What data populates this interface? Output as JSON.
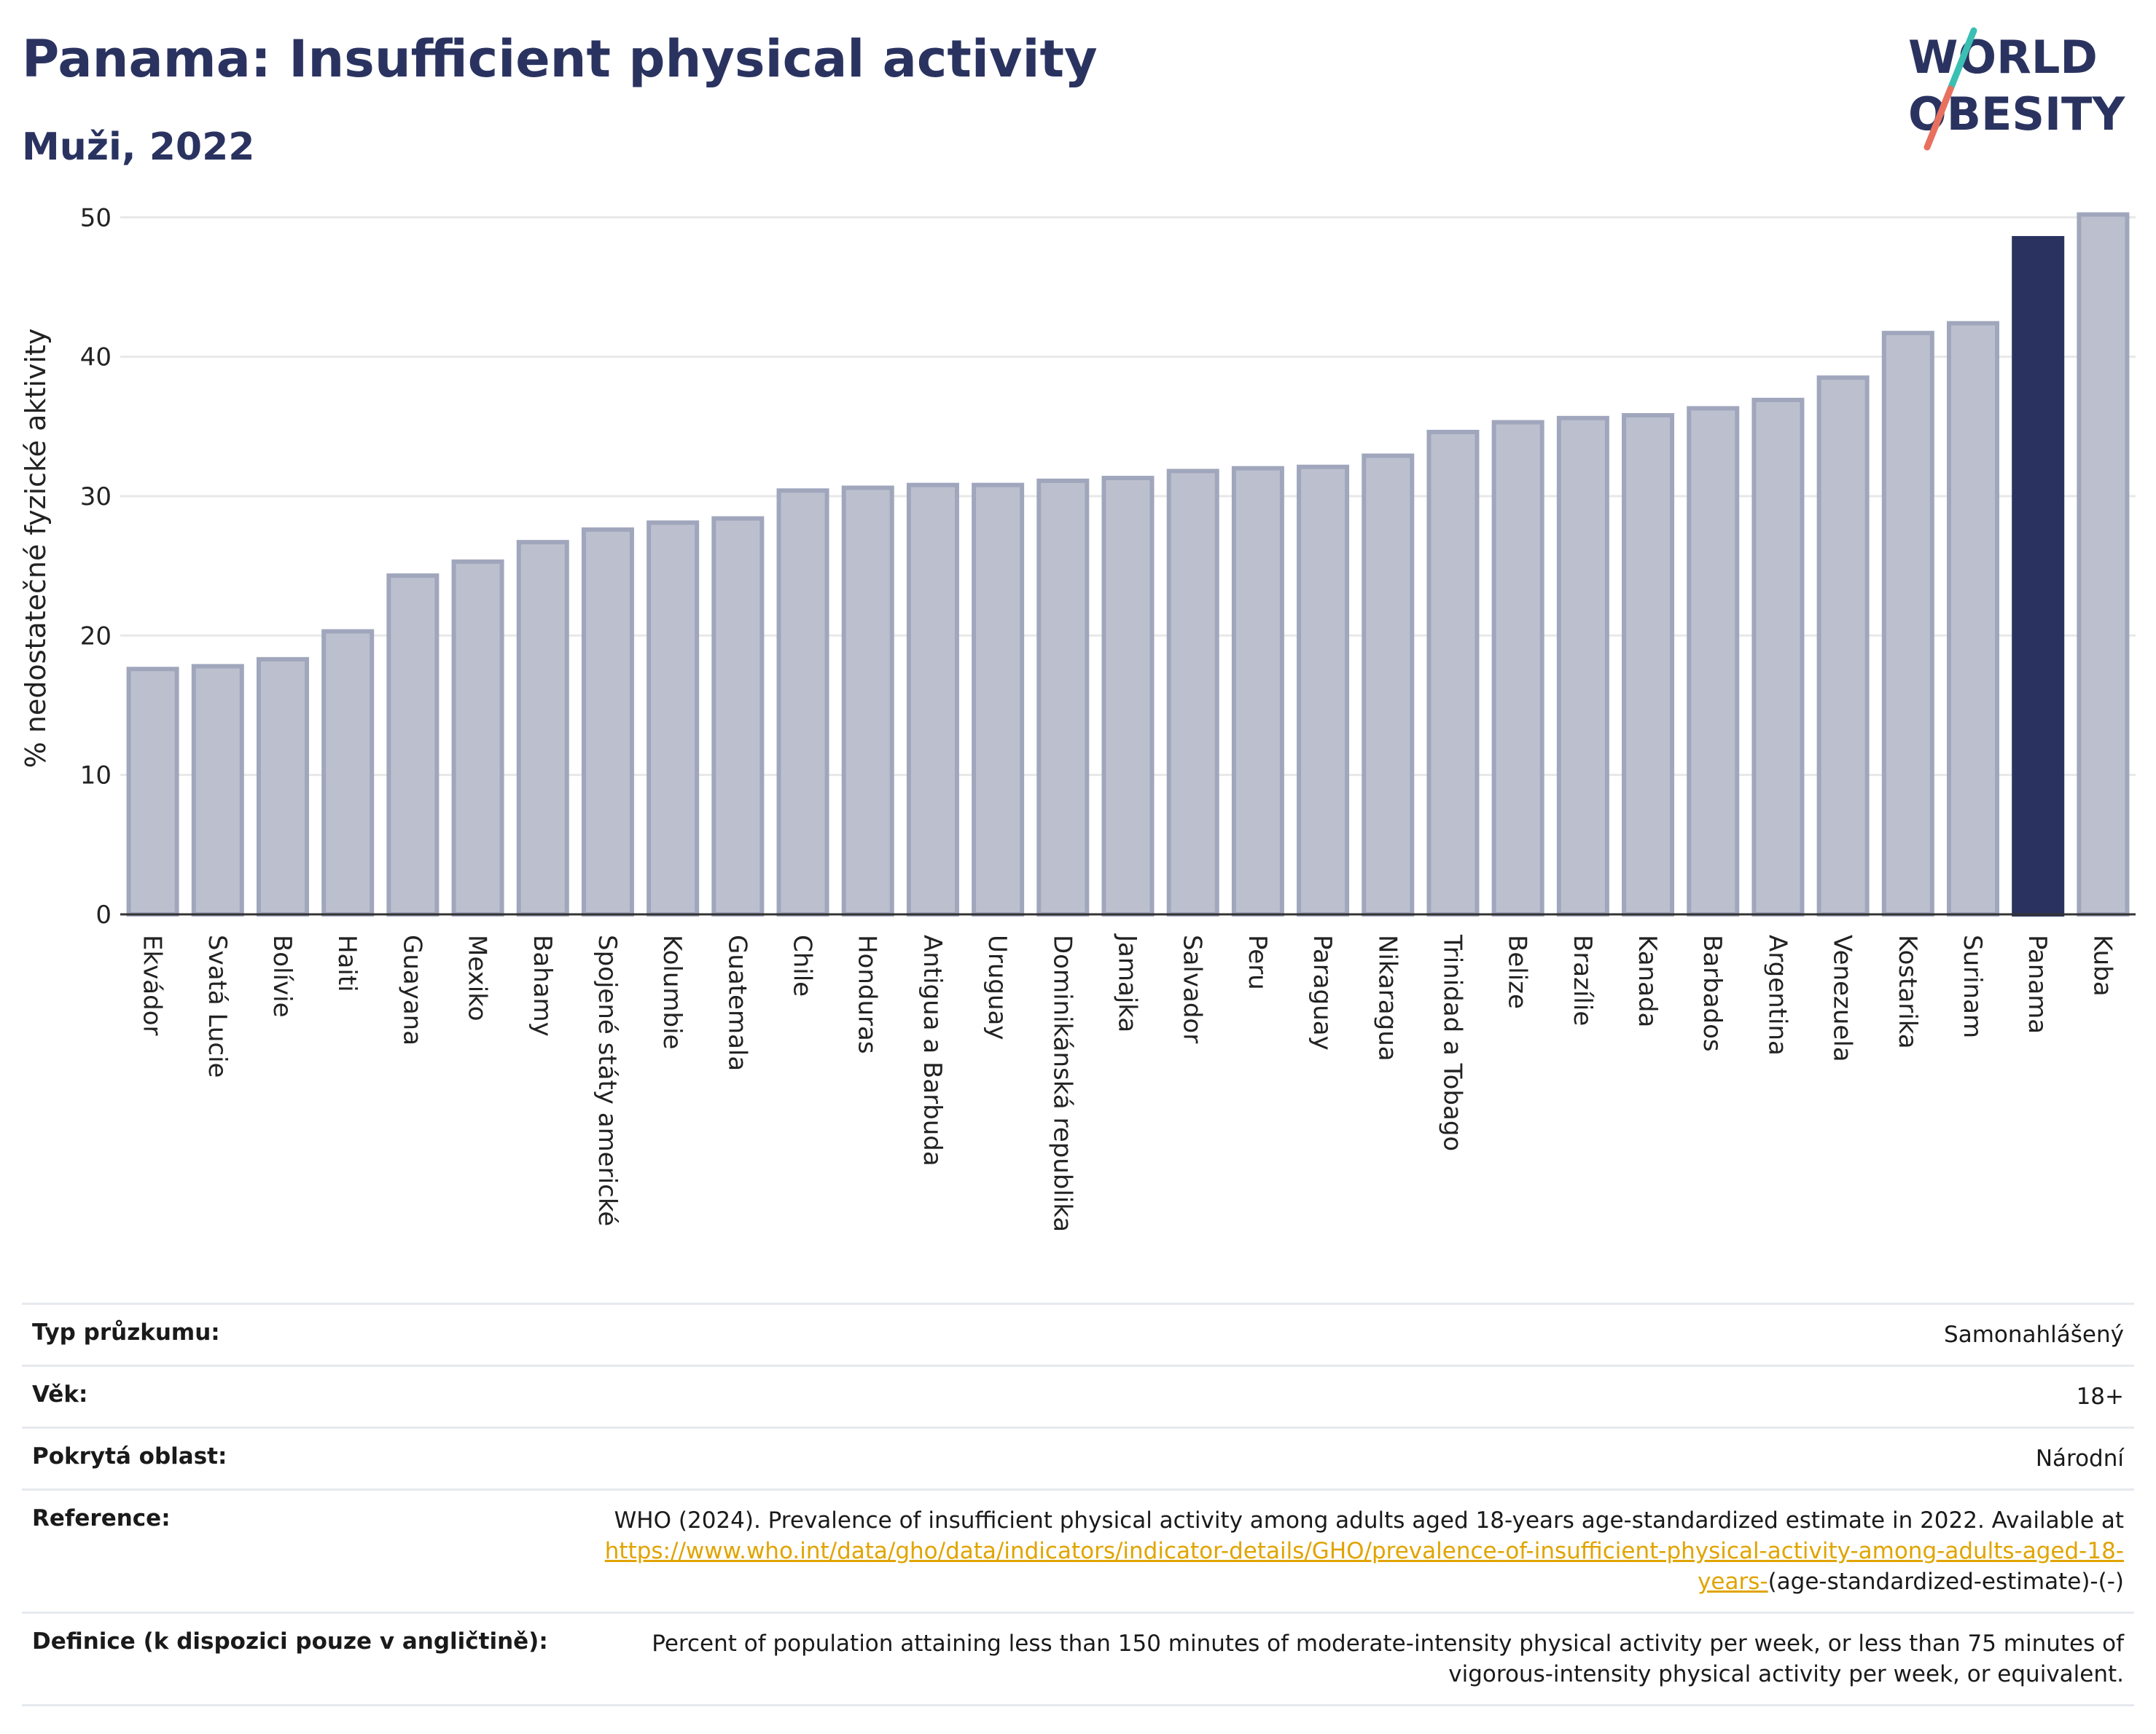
{
  "header": {
    "title": "Panama: Insufficient physical activity",
    "subtitle": "Muži, 2022",
    "logo_line1": "WORLD",
    "logo_line2": "OBESITY"
  },
  "colors": {
    "bar": "#bcc0ce",
    "bar_border": "#a0a6bc",
    "highlight": "#2a3360",
    "grid": "#e8e8e8",
    "link": "#e0a400",
    "logo_slash_teal": "#3bbfb3",
    "logo_slash_red": "#e8705e"
  },
  "chart_data": {
    "type": "bar",
    "ylabel": "% nedostatečné fyzické aktivity",
    "ylim": [
      0,
      52
    ],
    "yticks": [
      0,
      10,
      20,
      30,
      40,
      50
    ],
    "grid": true,
    "highlight": "Panama",
    "categories": [
      "Ekvádor",
      "Svatá Lucie",
      "Bolívie",
      "Haiti",
      "Guayana",
      "Mexiko",
      "Bahamy",
      "Spojené státy americké",
      "Kolumbie",
      "Guatemala",
      "Chile",
      "Honduras",
      "Antigua a Barbuda",
      "Uruguay",
      "Dominikánská republika",
      "Jamajka",
      "Salvador",
      "Peru",
      "Paraguay",
      "Nikaragua",
      "Trinidad a Tobago",
      "Belize",
      "Brazílie",
      "Kanada",
      "Barbados",
      "Argentina",
      "Venezuela",
      "Kostarika",
      "Surinam",
      "Panama",
      "Kuba"
    ],
    "values": [
      17.6,
      17.8,
      18.3,
      20.3,
      24.3,
      25.3,
      26.7,
      27.6,
      28.1,
      28.4,
      30.4,
      30.6,
      30.8,
      30.8,
      31.1,
      31.3,
      31.8,
      32.0,
      32.1,
      32.9,
      34.6,
      35.3,
      35.6,
      35.8,
      36.3,
      36.9,
      38.5,
      41.7,
      42.4,
      48.5,
      50.2
    ]
  },
  "info": {
    "rows": [
      {
        "label": "Typ průzkumu:",
        "value": "Samonahlášený"
      },
      {
        "label": "Věk:",
        "value": "18+"
      },
      {
        "label": "Pokrytá oblast:",
        "value": "Národní"
      }
    ],
    "reference": {
      "label": "Reference:",
      "text_before": "WHO (2024). Prevalence of insufficient physical activity among adults aged 18-years age-standardized estimate in 2022. Available at",
      "link": "https://www.who.int/data/gho/data/indicators/indicator-details/GHO/prevalence-of-insufficient-physical-activity-among-adults-aged-18-years-",
      "text_after": "(age-standardized-estimate)-(-)"
    },
    "definition": {
      "label": "Definice (k dispozici pouze v angličtině):",
      "value": "Percent of population attaining less than 150 minutes of moderate-intensity physical activity per week, or less than 75 minutes of vigorous-intensity physical activity per week, or equivalent."
    }
  }
}
